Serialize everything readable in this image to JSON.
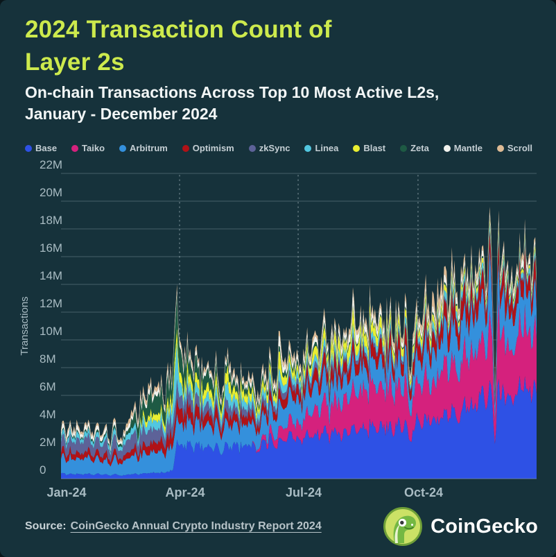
{
  "page": {
    "background": "#16323b",
    "outer_background": "#0a161a",
    "accent": "#cdea4d",
    "text_color": "#f2f6f6",
    "muted_color": "#a9bcc3",
    "gridline_color": "rgba(197,216,222,0.28)",
    "dashline_color": "rgba(210,226,231,0.45)"
  },
  "header": {
    "title_lines": [
      "2024 Transaction Count of",
      "Layer 2s"
    ],
    "subtitle_lines": [
      "On-chain Transactions Across Top 10 Most Active L2s,",
      "January - December 2024"
    ]
  },
  "chart_data": {
    "type": "area",
    "variant": "stacked-daily",
    "title": "2024 Transaction Count of Layer 2s",
    "xlabel": "",
    "ylabel": "Transactions",
    "units": "millions of transactions per day (estimated from chart)",
    "x_range_days": 365,
    "ylim": [
      0,
      22
    ],
    "grid": "horizontal",
    "legend_position": "top",
    "x_ticks": [
      {
        "label": "Jan-24",
        "day": 0,
        "dashed": false
      },
      {
        "label": "Apr-24",
        "day": 91,
        "dashed": true
      },
      {
        "label": "Jul-24",
        "day": 182,
        "dashed": true
      },
      {
        "label": "Oct-24",
        "day": 274,
        "dashed": true
      }
    ],
    "y_ticks": [
      {
        "label": "0",
        "value": 0
      },
      {
        "label": "2M",
        "value": 2
      },
      {
        "label": "4M",
        "value": 4
      },
      {
        "label": "6M",
        "value": 6
      },
      {
        "label": "8M",
        "value": 8
      },
      {
        "label": "10M",
        "value": 10
      },
      {
        "label": "12M",
        "value": 12
      },
      {
        "label": "14M",
        "value": 14
      },
      {
        "label": "16M",
        "value": 16
      },
      {
        "label": "18M",
        "value": 18
      },
      {
        "label": "20M",
        "value": 20
      },
      {
        "label": "22M",
        "value": 22
      }
    ],
    "series": [
      {
        "name": "Base",
        "color": "#2e51e5",
        "anchors": [
          [
            0,
            0.35
          ],
          [
            31,
            0.3
          ],
          [
            59,
            0.33
          ],
          [
            86,
            0.5
          ],
          [
            89,
            2.3
          ],
          [
            120,
            2.3
          ],
          [
            152,
            2.5
          ],
          [
            182,
            3.0
          ],
          [
            213,
            3.4
          ],
          [
            244,
            3.6
          ],
          [
            274,
            4.0
          ],
          [
            305,
            4.8
          ],
          [
            335,
            6.2
          ],
          [
            365,
            6.5
          ]
        ]
      },
      {
        "name": "Taiko",
        "color": "#d5217d",
        "anchors": [
          [
            0,
            0
          ],
          [
            146,
            0
          ],
          [
            152,
            0.25
          ],
          [
            182,
            1.2
          ],
          [
            213,
            2.4
          ],
          [
            244,
            2.9
          ],
          [
            274,
            2.8
          ],
          [
            305,
            3.4
          ],
          [
            335,
            4.4
          ],
          [
            365,
            4.0
          ]
        ]
      },
      {
        "name": "Arbitrum",
        "color": "#3490dc",
        "anchors": [
          [
            0,
            1.2
          ],
          [
            31,
            1.0
          ],
          [
            59,
            1.3
          ],
          [
            91,
            1.6
          ],
          [
            120,
            1.5
          ],
          [
            152,
            1.5
          ],
          [
            182,
            1.7
          ],
          [
            213,
            1.6
          ],
          [
            244,
            1.6
          ],
          [
            274,
            1.9
          ],
          [
            305,
            2.6
          ],
          [
            335,
            2.8
          ],
          [
            365,
            2.6
          ]
        ]
      },
      {
        "name": "Optimism",
        "color": "#b01217",
        "anchors": [
          [
            0,
            0.45
          ],
          [
            31,
            0.4
          ],
          [
            59,
            0.5
          ],
          [
            91,
            0.9
          ],
          [
            120,
            0.7
          ],
          [
            152,
            0.6
          ],
          [
            182,
            0.7
          ],
          [
            213,
            0.9
          ],
          [
            244,
            0.9
          ],
          [
            274,
            1.0
          ],
          [
            305,
            1.3
          ],
          [
            335,
            1.3
          ],
          [
            365,
            1.2
          ]
        ]
      },
      {
        "name": "zkSync",
        "color": "#5d6298",
        "anchors": [
          [
            0,
            0.9
          ],
          [
            31,
            0.8
          ],
          [
            59,
            1.0
          ],
          [
            91,
            0.9
          ],
          [
            120,
            0.6
          ],
          [
            152,
            0.5
          ],
          [
            182,
            0.4
          ],
          [
            213,
            0.35
          ],
          [
            244,
            0.25
          ],
          [
            274,
            0.2
          ],
          [
            305,
            0.2
          ],
          [
            335,
            0.15
          ],
          [
            365,
            0.15
          ]
        ]
      },
      {
        "name": "Linea",
        "color": "#52c7e0",
        "anchors": [
          [
            0,
            0.35
          ],
          [
            31,
            0.3
          ],
          [
            59,
            0.55
          ],
          [
            91,
            0.7
          ],
          [
            120,
            0.6
          ],
          [
            152,
            0.55
          ],
          [
            182,
            0.5
          ],
          [
            213,
            0.5
          ],
          [
            244,
            0.45
          ],
          [
            274,
            0.4
          ],
          [
            305,
            0.5
          ],
          [
            335,
            0.4
          ],
          [
            365,
            0.4
          ]
        ]
      },
      {
        "name": "Blast",
        "color": "#e9ee31",
        "anchors": [
          [
            0,
            0
          ],
          [
            58,
            0
          ],
          [
            62,
            0.3
          ],
          [
            91,
            0.7
          ],
          [
            120,
            0.6
          ],
          [
            152,
            0.55
          ],
          [
            182,
            0.5
          ],
          [
            213,
            0.8
          ],
          [
            244,
            0.7
          ],
          [
            274,
            0.5
          ],
          [
            305,
            0.4
          ],
          [
            335,
            0.3
          ],
          [
            365,
            0.25
          ]
        ]
      },
      {
        "name": "Zeta",
        "color": "#1e5a44",
        "anchors": [
          [
            0,
            0.1
          ],
          [
            31,
            0.15
          ],
          [
            48,
            0.2
          ],
          [
            59,
            0.9
          ],
          [
            75,
            1.4
          ],
          [
            91,
            1.5
          ],
          [
            105,
            1.0
          ],
          [
            120,
            0.7
          ],
          [
            152,
            0.35
          ],
          [
            182,
            0.3
          ],
          [
            213,
            0.15
          ],
          [
            244,
            0.1
          ],
          [
            274,
            0.1
          ],
          [
            305,
            0.15
          ],
          [
            335,
            0.12
          ],
          [
            365,
            0.1
          ]
        ]
      },
      {
        "name": "Mantle",
        "color": "#f2f3ee",
        "anchors": [
          [
            0,
            0.35
          ],
          [
            31,
            0.3
          ],
          [
            59,
            0.3
          ],
          [
            91,
            0.3
          ],
          [
            120,
            0.3
          ],
          [
            152,
            0.35
          ],
          [
            182,
            0.4
          ],
          [
            213,
            0.45
          ],
          [
            244,
            0.5
          ],
          [
            274,
            0.4
          ],
          [
            305,
            0.5
          ],
          [
            335,
            0.45
          ],
          [
            365,
            0.4
          ]
        ]
      },
      {
        "name": "Scroll",
        "color": "#debb95",
        "anchors": [
          [
            0,
            0.18
          ],
          [
            31,
            0.15
          ],
          [
            59,
            0.3
          ],
          [
            91,
            0.3
          ],
          [
            120,
            0.25
          ],
          [
            152,
            0.3
          ],
          [
            182,
            0.3
          ],
          [
            213,
            0.3
          ],
          [
            244,
            0.3
          ],
          [
            274,
            0.35
          ],
          [
            290,
            0.95
          ],
          [
            298,
            0.6
          ],
          [
            305,
            0.4
          ],
          [
            335,
            0.3
          ],
          [
            365,
            0.3
          ]
        ]
      }
    ]
  },
  "footer": {
    "source_label": "Source:",
    "source_link": "CoinGecko Annual Crypto Industry Report 2024",
    "brand": "CoinGecko",
    "logo_colors": {
      "circle": "#cbe166",
      "ring": "#6f9f38",
      "gecko": "#74b843"
    }
  }
}
